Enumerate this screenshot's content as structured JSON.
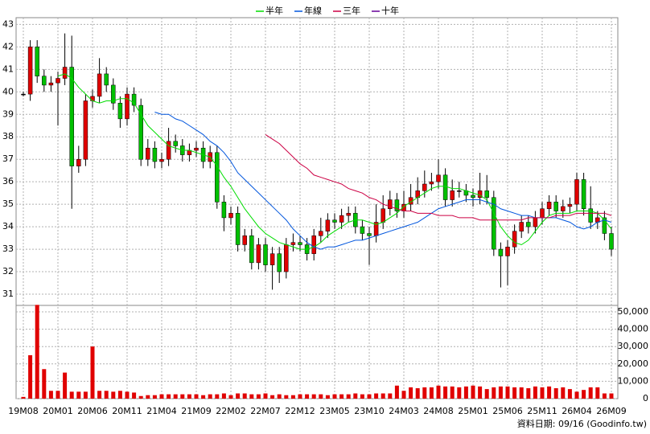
{
  "chart_data": {
    "type": "candlestick",
    "categories": [
      "19M08",
      null,
      null,
      null,
      null,
      "20M01",
      null,
      null,
      null,
      null,
      "20M06",
      null,
      null,
      null,
      null,
      "20M11",
      null,
      null,
      null,
      null,
      "21M04",
      null,
      null,
      null,
      null,
      "21M09",
      null,
      null,
      null,
      null,
      "22M02",
      null,
      null,
      null,
      null,
      "22M07",
      null,
      null,
      null,
      null,
      "22M12",
      null,
      null,
      null,
      null,
      "23M05",
      null,
      null,
      null,
      null,
      "23M10",
      null,
      null,
      null,
      null,
      "24M03",
      null,
      null,
      null,
      null,
      "24M08",
      null,
      null,
      null,
      null,
      "25M01",
      null,
      null,
      null,
      null,
      "25M06",
      null,
      null,
      null,
      null,
      "25M11",
      null,
      null,
      null,
      null,
      "26M04",
      null,
      null,
      null,
      null,
      "26M09"
    ],
    "open": [
      39.9,
      39.9,
      42.0,
      40.7,
      40.3,
      40.4,
      40.6,
      41.1,
      36.7,
      37.0,
      39.6,
      39.8,
      40.8,
      40.3,
      39.5,
      38.8,
      39.9,
      39.4,
      37.0,
      37.5,
      36.9,
      37.0,
      37.8,
      37.6,
      37.2,
      37.4,
      37.5,
      36.9,
      37.3,
      35.1,
      34.4,
      34.6,
      33.2,
      33.6,
      32.4,
      33.2,
      32.3,
      32.8,
      32.0,
      33.2,
      33.3,
      33.2,
      32.8,
      33.6,
      33.8,
      34.3,
      34.2,
      34.5,
      34.6,
      34.0,
      33.7,
      33.6,
      34.2,
      34.8,
      35.2,
      34.7,
      35.0,
      35.3,
      35.6,
      35.9,
      36.0,
      36.3,
      35.2,
      35.6,
      35.6,
      35.4,
      35.3,
      35.6,
      35.3,
      33.0,
      32.7,
      33.1,
      33.8,
      34.2,
      34.0,
      34.4,
      34.8,
      35.1,
      34.7,
      34.9,
      35.0,
      36.1,
      34.8,
      34.2,
      34.4,
      33.7
    ],
    "high": [
      40.0,
      42.3,
      42.3,
      41.0,
      40.7,
      40.9,
      42.6,
      42.5,
      37.6,
      39.9,
      40.1,
      41.5,
      41.1,
      40.6,
      39.8,
      40.2,
      40.2,
      39.7,
      37.9,
      37.8,
      37.3,
      38.4,
      38.1,
      37.9,
      37.7,
      37.8,
      37.8,
      37.6,
      37.6,
      35.4,
      34.9,
      34.9,
      33.9,
      33.9,
      33.5,
      33.5,
      33.1,
      33.1,
      33.5,
      33.7,
      33.6,
      33.5,
      33.9,
      34.4,
      34.6,
      34.6,
      34.8,
      34.9,
      34.9,
      34.3,
      34.0,
      35.0,
      35.4,
      35.6,
      35.5,
      35.6,
      35.9,
      36.2,
      36.5,
      36.4,
      37.0,
      36.6,
      36.1,
      36.0,
      35.9,
      35.7,
      36.4,
      36.3,
      35.6,
      33.3,
      33.4,
      34.1,
      34.5,
      34.5,
      34.7,
      35.1,
      35.4,
      35.4,
      35.2,
      35.3,
      36.4,
      36.4,
      35.8,
      34.7,
      34.7,
      34.0
    ],
    "low": [
      39.8,
      39.6,
      40.4,
      40.0,
      40.0,
      38.5,
      40.3,
      34.8,
      36.4,
      36.7,
      39.3,
      39.5,
      40.0,
      39.2,
      38.4,
      38.5,
      39.1,
      36.7,
      36.7,
      36.6,
      36.6,
      36.7,
      37.3,
      36.9,
      36.9,
      37.1,
      36.6,
      36.6,
      34.8,
      33.8,
      34.1,
      32.9,
      32.9,
      32.1,
      32.1,
      32.0,
      31.2,
      31.5,
      31.7,
      32.9,
      32.9,
      32.5,
      32.5,
      33.3,
      33.5,
      33.9,
      33.9,
      34.2,
      33.7,
      33.4,
      32.3,
      33.3,
      33.9,
      34.5,
      34.4,
      34.4,
      34.7,
      35.0,
      35.3,
      35.6,
      35.7,
      34.9,
      34.9,
      35.3,
      35.1,
      34.9,
      35.0,
      35.0,
      32.7,
      31.3,
      31.4,
      32.8,
      33.5,
      33.7,
      33.7,
      34.1,
      34.5,
      34.4,
      34.4,
      34.6,
      34.7,
      34.5,
      33.9,
      33.9,
      33.4,
      32.7
    ],
    "close": [
      39.9,
      42.0,
      40.7,
      40.3,
      40.4,
      40.6,
      41.1,
      36.7,
      37.0,
      39.6,
      39.8,
      40.8,
      40.3,
      39.5,
      38.8,
      39.9,
      39.4,
      37.0,
      37.5,
      36.9,
      37.0,
      37.8,
      37.6,
      37.2,
      37.4,
      37.5,
      36.9,
      37.3,
      35.1,
      34.4,
      34.6,
      33.2,
      33.6,
      32.4,
      33.2,
      32.3,
      32.8,
      32.0,
      33.2,
      33.3,
      33.2,
      32.8,
      33.6,
      33.8,
      34.3,
      34.2,
      34.5,
      34.6,
      34.0,
      33.7,
      33.6,
      34.2,
      34.8,
      35.2,
      34.7,
      35.0,
      35.3,
      35.6,
      35.9,
      36.0,
      36.3,
      35.2,
      35.6,
      35.6,
      35.4,
      35.3,
      35.6,
      35.3,
      33.0,
      32.7,
      33.1,
      33.8,
      34.2,
      34.0,
      34.4,
      34.8,
      35.1,
      34.7,
      34.9,
      35.0,
      36.1,
      34.8,
      34.2,
      34.4,
      33.7,
      33.0
    ],
    "up_color": "#e00000",
    "down_color": "#00c000",
    "series": [
      {
        "name": "半年",
        "color": "#00dd00",
        "values": [
          null,
          null,
          null,
          null,
          null,
          40.7,
          40.8,
          40.6,
          40.2,
          39.9,
          39.6,
          39.5,
          39.6,
          39.6,
          39.7,
          39.7,
          39.5,
          39.0,
          38.5,
          38.2,
          37.9,
          37.6,
          37.5,
          37.4,
          37.4,
          37.3,
          37.2,
          37.1,
          36.7,
          36.2,
          35.8,
          35.3,
          34.8,
          34.4,
          34.0,
          33.7,
          33.5,
          33.3,
          33.2,
          33.1,
          33.0,
          33.0,
          33.1,
          33.3,
          33.6,
          33.8,
          34.0,
          34.2,
          34.3,
          34.3,
          34.2,
          34.1,
          34.2,
          34.4,
          34.6,
          34.9,
          35.1,
          35.3,
          35.5,
          35.7,
          35.8,
          35.8,
          35.7,
          35.7,
          35.6,
          35.5,
          35.4,
          35.2,
          34.6,
          34.0,
          33.6,
          33.3,
          33.2,
          33.4,
          33.8,
          34.2,
          34.5,
          34.6,
          34.6,
          34.6,
          34.7,
          34.7,
          34.7,
          34.6,
          34.3,
          33.9
        ]
      },
      {
        "name": "年線",
        "color": "#0055dd",
        "values": [
          null,
          null,
          null,
          null,
          null,
          null,
          null,
          null,
          null,
          null,
          null,
          null,
          null,
          null,
          null,
          null,
          null,
          null,
          null,
          39.1,
          39.0,
          39.0,
          38.8,
          38.7,
          38.5,
          38.3,
          38.1,
          37.8,
          37.6,
          37.3,
          36.9,
          36.4,
          36.1,
          35.8,
          35.5,
          35.2,
          34.9,
          34.6,
          34.3,
          33.9,
          33.6,
          33.3,
          33.1,
          33.0,
          33.1,
          33.1,
          33.2,
          33.3,
          33.4,
          33.4,
          33.5,
          33.6,
          33.7,
          33.8,
          33.9,
          34.0,
          34.1,
          34.2,
          34.4,
          34.6,
          34.8,
          34.9,
          35.0,
          35.1,
          35.2,
          35.2,
          35.2,
          35.1,
          35.0,
          34.8,
          34.7,
          34.6,
          34.5,
          34.5,
          34.4,
          34.4,
          34.4,
          34.4,
          34.3,
          34.2,
          34.0,
          33.9,
          34.0,
          34.2,
          34.3,
          34.2
        ]
      },
      {
        "name": "三年",
        "color": "#cc0044",
        "values": [
          null,
          null,
          null,
          null,
          null,
          null,
          null,
          null,
          null,
          null,
          null,
          null,
          null,
          null,
          null,
          null,
          null,
          null,
          null,
          null,
          null,
          null,
          null,
          null,
          null,
          null,
          null,
          null,
          null,
          null,
          null,
          null,
          null,
          null,
          null,
          38.1,
          37.9,
          37.7,
          37.4,
          37.1,
          36.8,
          36.6,
          36.3,
          36.2,
          36.1,
          36.0,
          35.9,
          35.7,
          35.6,
          35.5,
          35.3,
          35.2,
          35.0,
          34.9,
          34.8,
          34.7,
          34.7,
          34.6,
          34.6,
          34.6,
          34.5,
          34.5,
          34.5,
          34.4,
          34.4,
          34.4,
          34.3,
          34.3,
          34.3,
          34.3,
          34.3,
          34.3,
          34.3,
          34.4,
          34.4,
          34.4,
          34.4,
          34.5,
          34.5,
          34.5,
          34.6,
          34.6,
          34.6,
          34.6,
          34.6,
          34.5
        ]
      },
      {
        "name": "十年",
        "color": "#660099",
        "values": [
          null,
          null,
          null,
          null,
          null,
          null,
          null,
          null,
          null,
          null,
          null,
          null,
          null,
          null,
          null,
          null,
          null,
          null,
          null,
          null,
          null,
          null,
          null,
          null,
          null,
          null,
          null,
          null,
          null,
          null,
          null,
          null,
          null,
          null,
          null,
          null,
          null,
          null,
          null,
          null,
          null,
          null,
          null,
          null,
          null,
          null,
          null,
          null,
          null,
          null,
          null,
          null,
          null,
          null,
          null,
          null,
          null,
          null,
          null,
          null,
          null,
          null,
          null,
          null,
          null,
          null,
          null,
          null,
          null,
          null,
          null,
          null,
          null,
          null,
          null,
          null,
          null,
          null,
          null,
          null,
          null,
          null,
          null,
          null,
          null,
          null
        ]
      }
    ],
    "ylim": [
      30.5,
      43.3
    ],
    "yticks": [
      31,
      32,
      33,
      34,
      35,
      36,
      37,
      38,
      39,
      40,
      41,
      42,
      43
    ],
    "volume": {
      "color": "#e00000",
      "ylim": [
        0,
        53700
      ],
      "yticks": [
        0,
        {
          "value": 10000,
          "label": "10,000"
        },
        {
          "value": 20000,
          "label": "20,000"
        },
        {
          "value": 30000,
          "label": "30,000"
        },
        {
          "value": 40000,
          "label": "40,000"
        },
        {
          "value": 50000,
          "label": "50,000"
        }
      ],
      "values": [
        1000,
        25000,
        54000,
        17000,
        4500,
        4500,
        15000,
        4000,
        4000,
        4000,
        30000,
        4500,
        4500,
        4000,
        4500,
        4000,
        3500,
        1500,
        2000,
        2000,
        2500,
        2500,
        2500,
        2500,
        2500,
        2500,
        2000,
        2500,
        2500,
        3000,
        2000,
        3000,
        3000,
        2500,
        2500,
        3000,
        2000,
        2500,
        2000,
        2000,
        2500,
        2500,
        2500,
        2500,
        2000,
        2500,
        2500,
        2500,
        3000,
        2500,
        2500,
        3000,
        3000,
        3000,
        7500,
        4500,
        6500,
        6000,
        6500,
        6500,
        7500,
        7000,
        7000,
        6500,
        7000,
        7500,
        7000,
        5500,
        6500,
        7000,
        7000,
        6500,
        6500,
        6000,
        7000,
        6500,
        7000,
        6000,
        6500,
        5500,
        4000,
        5000,
        6500,
        6500,
        3000,
        3000
      ]
    },
    "grid": true,
    "source": "資料日期: 09/16 (Goodinfo.tw)"
  }
}
